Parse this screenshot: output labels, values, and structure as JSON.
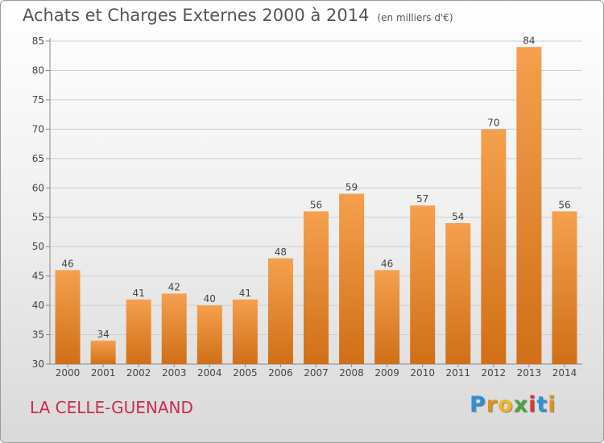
{
  "chart_data": {
    "type": "bar",
    "title": "Achats et Charges Externes 2000 à 2014",
    "subtitle": "(en milliers d'€)",
    "categories": [
      "2000",
      "2001",
      "2002",
      "2003",
      "2004",
      "2005",
      "2006",
      "2007",
      "2008",
      "2009",
      "2010",
      "2011",
      "2012",
      "2013",
      "2014"
    ],
    "values": [
      46,
      34,
      41,
      42,
      40,
      41,
      48,
      56,
      59,
      46,
      57,
      54,
      70,
      84,
      56
    ],
    "ylim": [
      30,
      85
    ],
    "yticks": [
      30,
      35,
      40,
      45,
      50,
      55,
      60,
      65,
      70,
      75,
      80,
      85
    ],
    "grid": true,
    "bar_color_top": "#f5a04e",
    "bar_color_bottom": "#d06f17"
  },
  "commune": "LA CELLE-GUENAND",
  "brand": {
    "letters": [
      "P",
      "r",
      "o",
      "x",
      "i",
      "t",
      "i"
    ],
    "colors": [
      "#2f8fd8",
      "#e6901c",
      "#f0b51f",
      "#4aa73c",
      "#d9372e",
      "#2f8fd8",
      "#e6901c"
    ]
  }
}
